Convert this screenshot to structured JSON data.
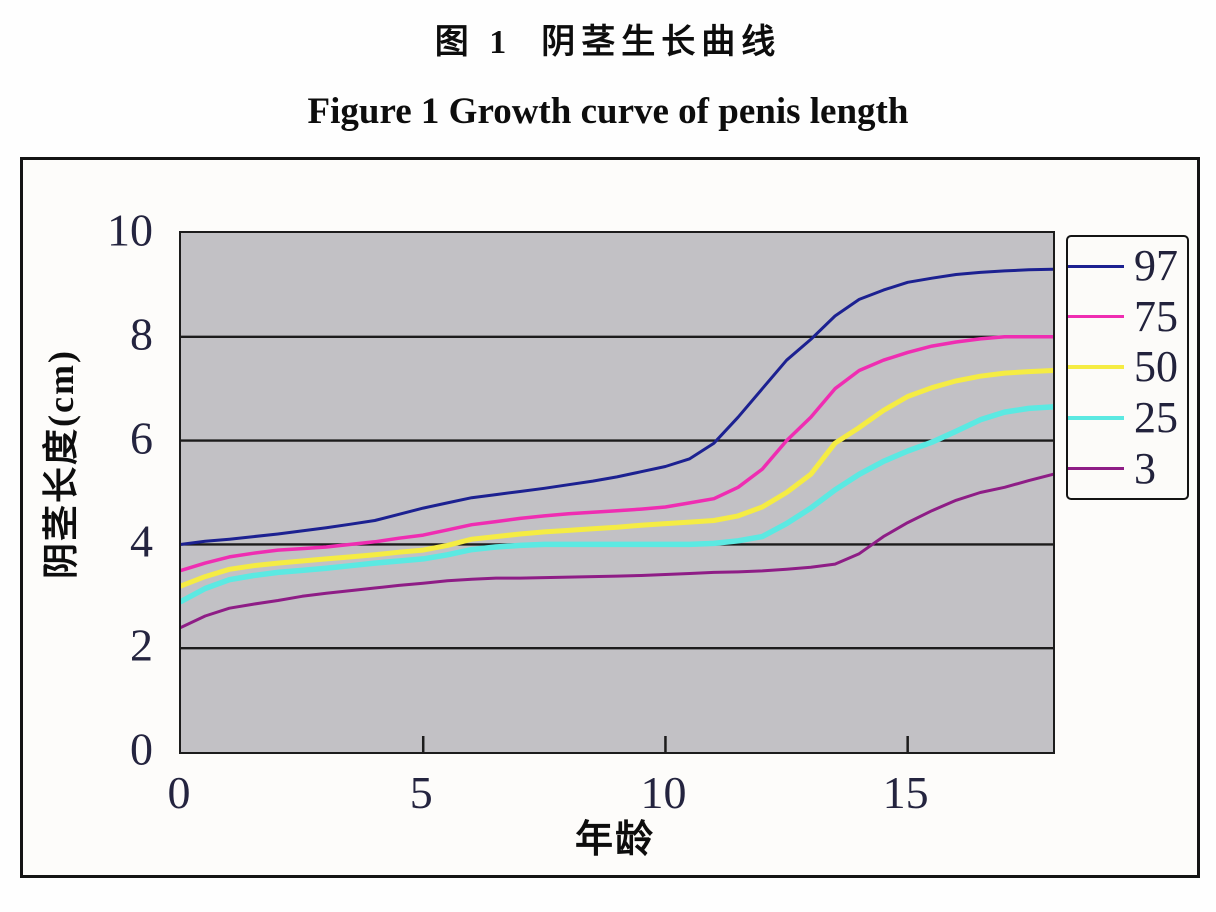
{
  "titles": {
    "chinese": "图 1  阴茎生长曲线",
    "english": "Figure 1 Growth curve of penis length"
  },
  "chart_data": {
    "type": "line",
    "title": "图 1 阴茎生长曲线 / Figure 1 Growth curve of penis length",
    "xlabel": "年龄",
    "ylabel": "阴茎长度(cm)",
    "xlim": [
      0,
      18
    ],
    "ylim": [
      0,
      10
    ],
    "x_ticks": [
      0,
      5,
      10,
      15
    ],
    "y_ticks": [
      0,
      2,
      4,
      6,
      8,
      10
    ],
    "grid": "horizontal",
    "legend_position": "right",
    "plot_background": "#c2c1c5",
    "grid_color": "#1c1c1c",
    "x": [
      0,
      0.5,
      1,
      1.5,
      2,
      2.5,
      3,
      3.5,
      4,
      4.5,
      5,
      5.5,
      6,
      6.5,
      7,
      7.5,
      8,
      8.5,
      9,
      9.5,
      10,
      10.5,
      11,
      11.5,
      12,
      12.5,
      13,
      13.5,
      14,
      14.5,
      15,
      15.5,
      16,
      16.5,
      17,
      17.5,
      18
    ],
    "series": [
      {
        "name": "97",
        "color": "#1c2191",
        "line_width": 3,
        "values": [
          4.0,
          4.06,
          4.1,
          4.15,
          4.2,
          4.26,
          4.32,
          4.39,
          4.46,
          4.58,
          4.7,
          4.8,
          4.9,
          4.96,
          5.02,
          5.08,
          5.15,
          5.22,
          5.3,
          5.4,
          5.5,
          5.65,
          5.95,
          6.45,
          7.0,
          7.55,
          7.95,
          8.4,
          8.72,
          8.9,
          9.05,
          9.13,
          9.2,
          9.24,
          9.27,
          9.29,
          9.3
        ]
      },
      {
        "name": "75",
        "color": "#ef2db2",
        "line_width": 3.5,
        "values": [
          3.5,
          3.64,
          3.76,
          3.83,
          3.89,
          3.92,
          3.95,
          4.0,
          4.05,
          4.12,
          4.18,
          4.28,
          4.38,
          4.44,
          4.5,
          4.55,
          4.59,
          4.62,
          4.65,
          4.68,
          4.72,
          4.8,
          4.88,
          5.1,
          5.45,
          6.0,
          6.45,
          7.0,
          7.35,
          7.55,
          7.7,
          7.82,
          7.9,
          7.96,
          8.0,
          8.0,
          8.0
        ]
      },
      {
        "name": "50",
        "color": "#f5ec43",
        "line_width": 5,
        "values": [
          3.2,
          3.38,
          3.52,
          3.59,
          3.64,
          3.68,
          3.72,
          3.76,
          3.8,
          3.85,
          3.89,
          3.98,
          4.1,
          4.15,
          4.2,
          4.24,
          4.27,
          4.3,
          4.33,
          4.37,
          4.4,
          4.43,
          4.46,
          4.55,
          4.72,
          5.0,
          5.35,
          5.95,
          6.25,
          6.58,
          6.85,
          7.02,
          7.15,
          7.24,
          7.3,
          7.33,
          7.35
        ]
      },
      {
        "name": "25",
        "color": "#5be9e2",
        "line_width": 5.5,
        "values": [
          2.9,
          3.15,
          3.32,
          3.4,
          3.46,
          3.5,
          3.54,
          3.59,
          3.64,
          3.68,
          3.72,
          3.8,
          3.9,
          3.95,
          3.98,
          4.0,
          4.0,
          4.0,
          4.0,
          4.0,
          4.0,
          4.0,
          4.02,
          4.07,
          4.15,
          4.4,
          4.7,
          5.05,
          5.35,
          5.6,
          5.8,
          5.97,
          6.18,
          6.4,
          6.55,
          6.62,
          6.65
        ]
      },
      {
        "name": "3",
        "color": "#8e1d86",
        "line_width": 3,
        "values": [
          2.4,
          2.62,
          2.77,
          2.85,
          2.92,
          3.0,
          3.06,
          3.11,
          3.16,
          3.21,
          3.25,
          3.3,
          3.33,
          3.35,
          3.35,
          3.36,
          3.37,
          3.38,
          3.39,
          3.4,
          3.42,
          3.44,
          3.46,
          3.47,
          3.49,
          3.52,
          3.56,
          3.62,
          3.82,
          4.15,
          4.42,
          4.65,
          4.85,
          5.0,
          5.1,
          5.23,
          5.35
        ]
      }
    ]
  }
}
